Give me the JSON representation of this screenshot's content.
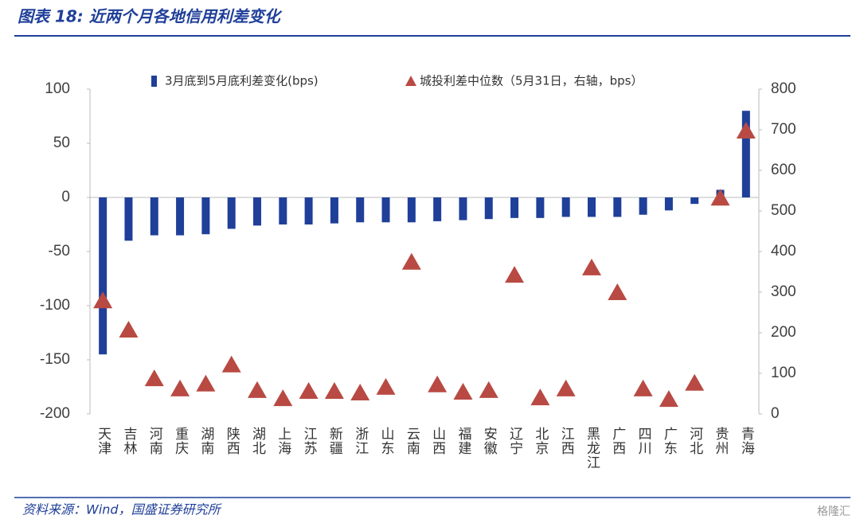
{
  "chart_data": {
    "type": "bar",
    "title": "图表 18:  近两个月各地信用利差变化",
    "source": "资料来源：Wind，国盛证券研究所",
    "watermark": "格隆汇",
    "categories": [
      "天津",
      "吉林",
      "河南",
      "重庆",
      "湖南",
      "陕西",
      "湖北",
      "上海",
      "江苏",
      "新疆",
      "浙江",
      "山东",
      "云南",
      "山西",
      "福建",
      "安徽",
      "辽宁",
      "北京",
      "江西",
      "黑龙江",
      "广西",
      "四川",
      "广东",
      "河北",
      "贵州",
      "青海"
    ],
    "series": [
      {
        "name": "3月底到5月底利差变化(bps)",
        "color": "#1f3f99",
        "type": "bar",
        "values": [
          -145,
          -40,
          -35,
          -35,
          -34,
          -29,
          -26,
          -25,
          -25,
          -24,
          -23,
          -23,
          -23,
          -22,
          -21,
          -20,
          -19,
          -19,
          -18,
          -18,
          -18,
          -16,
          -12,
          -6,
          7,
          80
        ]
      },
      {
        "name": "城投利差中位数（5月31日，右轴，bps）",
        "color": "#b84a43",
        "type": "triangle",
        "axis": "y2",
        "values": [
          278,
          206,
          86,
          61,
          73,
          120,
          57,
          37,
          55,
          55,
          51,
          65,
          373,
          71,
          53,
          57,
          341,
          39,
          61,
          359,
          298,
          61,
          35,
          75,
          531,
          696
        ]
      }
    ],
    "ylim": [
      -200,
      100
    ],
    "yticks": [
      100,
      50,
      0,
      -50,
      -100,
      -150,
      -200
    ],
    "y2lim": [
      0,
      800
    ],
    "y2ticks": [
      800,
      700,
      600,
      500,
      400,
      300,
      200,
      100,
      0
    ]
  }
}
